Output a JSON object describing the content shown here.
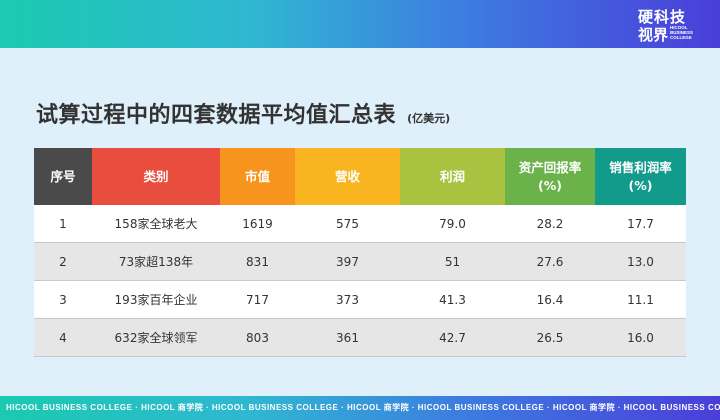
{
  "logo": {
    "line1": "硬科技",
    "line2": "视界",
    "sub1": "HICOOL",
    "sub2": "BUSINESS",
    "sub3": "COLLEGE"
  },
  "title": "试算过程中的四套数据平均值汇总表",
  "title_unit": "(亿美元)",
  "table": {
    "headers": [
      {
        "label": "序号",
        "color": "#4a4a4a"
      },
      {
        "label": "类别",
        "color": "#e94d3d"
      },
      {
        "label": "市值",
        "color": "#f7941d"
      },
      {
        "label": "营收",
        "color": "#f8b520"
      },
      {
        "label": "利润",
        "color": "#a9c23f"
      },
      {
        "label": "资产回报率\n(%)",
        "color": "#6bb24a"
      },
      {
        "label": "销售利润率\n(%)",
        "color": "#129a8b"
      }
    ],
    "rows": [
      [
        "1",
        "158家全球老大",
        "1619",
        "575",
        "79.0",
        "28.2",
        "17.7"
      ],
      [
        "2",
        "73家超138年",
        "831",
        "397",
        "51",
        "27.6",
        "13.0"
      ],
      [
        "3",
        "193家百年企业",
        "717",
        "373",
        "41.3",
        "16.4",
        "11.1"
      ],
      [
        "4",
        "632家全球领军",
        "803",
        "361",
        "42.7",
        "26.5",
        "16.0"
      ]
    ]
  },
  "footer_text": "HICOOL BUSINESS COLLEGE  ·  HICOOL 商学院  ·  HICOOL BUSINESS COLLEGE  ·  HICOOL 商学院  ·  HICOOL BUSINESS COLLEGE  ·  HICOOL 商学院  ·  HICOOL BUSINESS COLLEGE"
}
